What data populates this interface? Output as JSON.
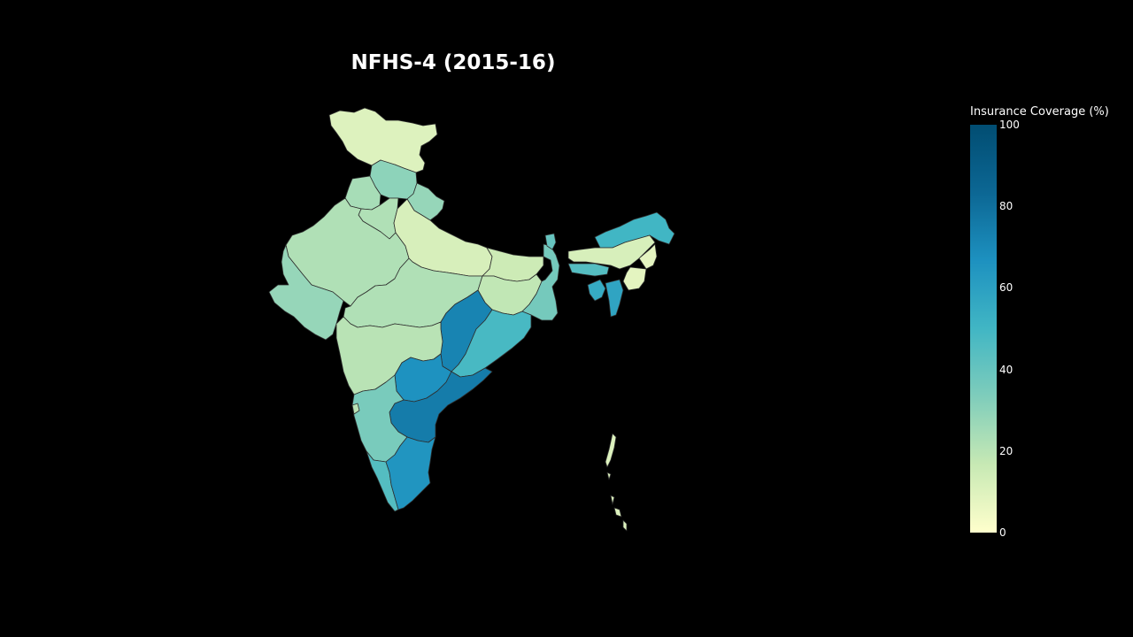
{
  "title": "NFHS-4 (2015-16)",
  "colorbar": {
    "title": "Insurance Coverage (%)",
    "min": 0,
    "max": 100,
    "ticks": [
      "0",
      "20",
      "40",
      "60",
      "80",
      "100"
    ],
    "colorscale": [
      "#ffffcc",
      "#c7e9b4",
      "#7fcdbb",
      "#41b6c4",
      "#1d91c0",
      "#0c6794",
      "#014d72"
    ]
  },
  "map_data": {
    "metric": "Insurance Coverage (%)",
    "regions": [
      {
        "name": "Jammu & Kashmir",
        "value": 10
      },
      {
        "name": "Himachal Pradesh",
        "value": 30
      },
      {
        "name": "Punjab",
        "value": 24
      },
      {
        "name": "Uttarakhand",
        "value": 28
      },
      {
        "name": "Haryana",
        "value": 22
      },
      {
        "name": "Rajasthan",
        "value": 22
      },
      {
        "name": "Uttar Pradesh",
        "value": 12
      },
      {
        "name": "Bihar",
        "value": 15
      },
      {
        "name": "Gujarat",
        "value": 28
      },
      {
        "name": "Madhya Pradesh",
        "value": 22
      },
      {
        "name": "Jharkhand",
        "value": 18
      },
      {
        "name": "West Bengal",
        "value": 36
      },
      {
        "name": "Chhattisgarh",
        "value": 72
      },
      {
        "name": "Odisha",
        "value": 48
      },
      {
        "name": "Maharashtra",
        "value": 20
      },
      {
        "name": "Telangana",
        "value": 66
      },
      {
        "name": "Andhra Pradesh",
        "value": 75
      },
      {
        "name": "Karnataka",
        "value": 35
      },
      {
        "name": "Kerala",
        "value": 45
      },
      {
        "name": "Tamil Nadu",
        "value": 65
      },
      {
        "name": "Goa",
        "value": 20
      },
      {
        "name": "Sikkim",
        "value": 40
      },
      {
        "name": "Arunachal Pradesh",
        "value": 50
      },
      {
        "name": "Assam",
        "value": 12
      },
      {
        "name": "Meghalaya",
        "value": 45
      },
      {
        "name": "Nagaland",
        "value": 8
      },
      {
        "name": "Manipur",
        "value": 8
      },
      {
        "name": "Tripura",
        "value": 55
      },
      {
        "name": "Mizoram",
        "value": 58
      },
      {
        "name": "Andaman & Nicobar",
        "value": 10
      }
    ]
  }
}
